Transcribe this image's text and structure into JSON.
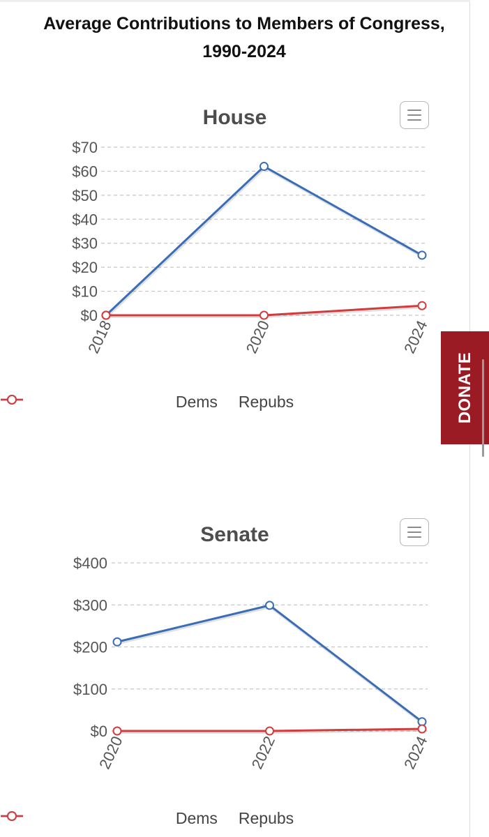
{
  "page": {
    "title": "Average Contributions to Members of Congress, 1990-2024"
  },
  "donate": {
    "label": "DONATE"
  },
  "colors": {
    "dems": "#3a6db5",
    "repubs": "#d23c3c",
    "grid": "#c6c6c6",
    "axis_text": "#555555"
  },
  "chart_data": [
    {
      "type": "line",
      "title": "House",
      "categories": [
        "2018",
        "2020",
        "2024"
      ],
      "y_tick_labels": [
        "$0",
        "$10",
        "$20",
        "$30",
        "$40",
        "$50",
        "$60",
        "$70"
      ],
      "ylim": [
        0,
        70
      ],
      "series": [
        {
          "name": "Dems",
          "values": [
            0,
            62,
            25
          ]
        },
        {
          "name": "Repubs",
          "values": [
            0,
            0,
            4
          ]
        }
      ],
      "grid": true,
      "legend": "bottom-center",
      "menu_icon": "hamburger-menu-icon"
    },
    {
      "type": "line",
      "title": "Senate",
      "categories": [
        "2020",
        "2022",
        "2024"
      ],
      "y_tick_labels": [
        "$0",
        "$100",
        "$200",
        "$300",
        "$400"
      ],
      "ylim": [
        0,
        400
      ],
      "series": [
        {
          "name": "Dems",
          "values": [
            212,
            299,
            22
          ]
        },
        {
          "name": "Repubs",
          "values": [
            0,
            0,
            5
          ]
        }
      ],
      "grid": true,
      "legend": "bottom-center",
      "menu_icon": "hamburger-menu-icon"
    }
  ]
}
